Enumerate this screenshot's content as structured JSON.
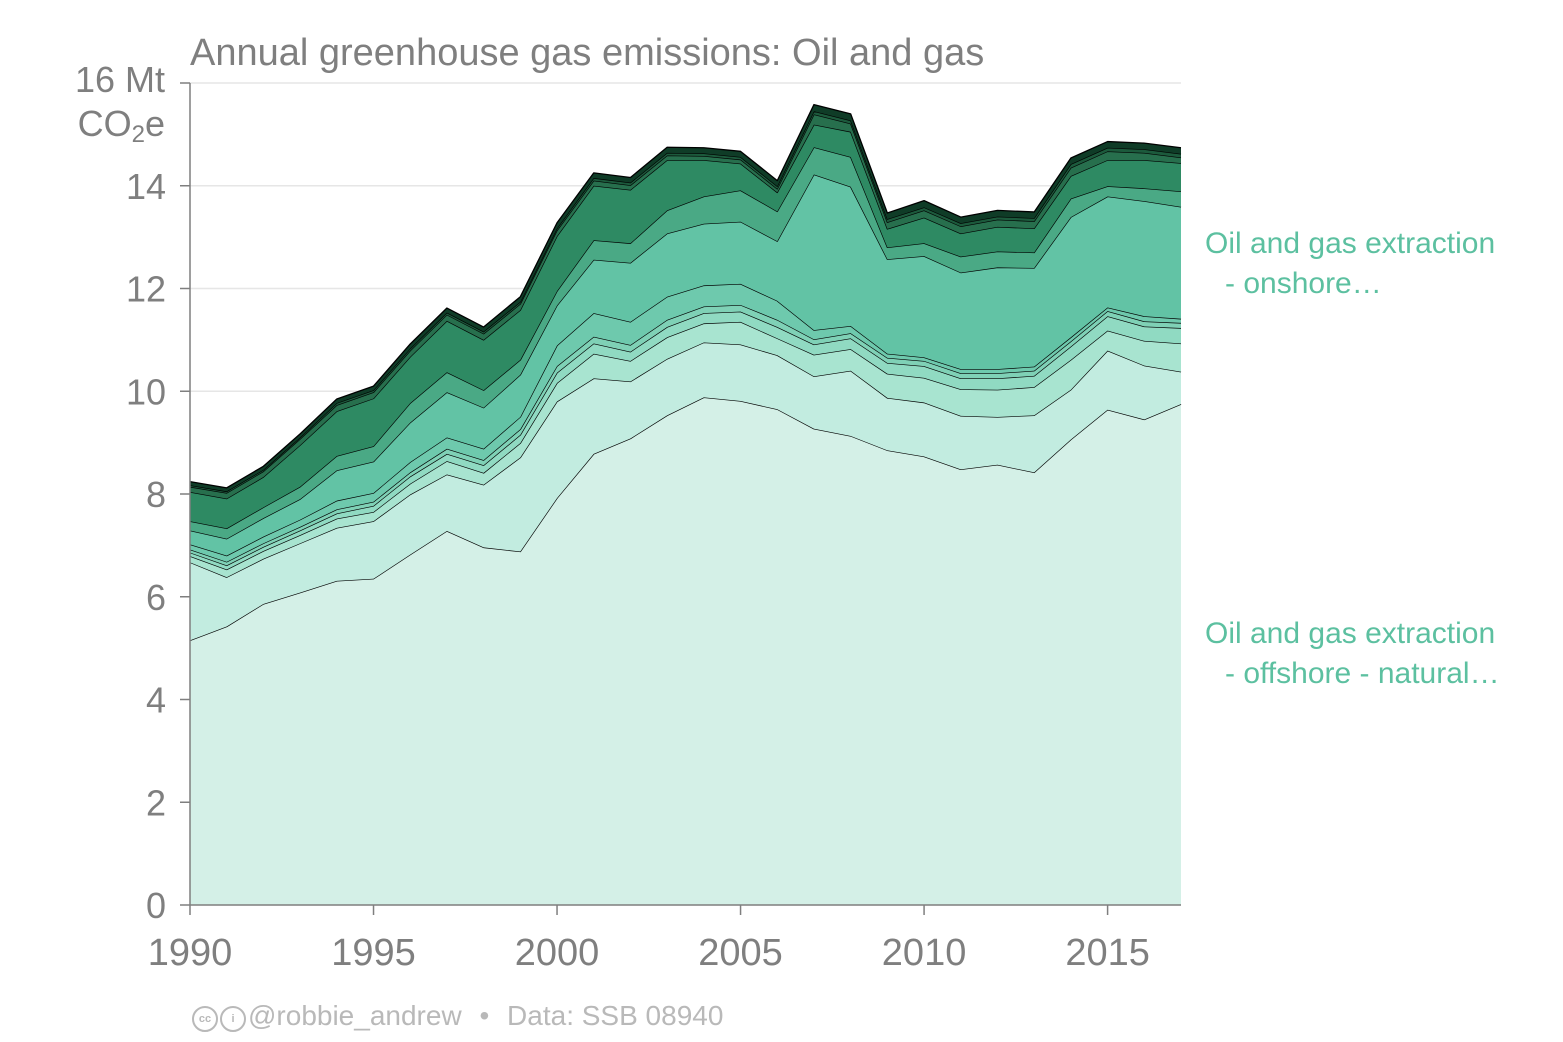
{
  "title": "Annual greenhouse gas emissions: Oil and gas",
  "unit": {
    "line1": "16 Mt",
    "line2_main": "CO",
    "line2_sub": "2",
    "line2_end": "e"
  },
  "footer": {
    "handle": "@robbie_andrew",
    "separator": "•",
    "source": "Data: SSB 08940"
  },
  "series_labels": {
    "onshore": {
      "line1": "Oil and gas extraction",
      "line2": "- onshore…"
    },
    "offshore_gas": {
      "line1": "Oil and gas extraction",
      "line2": "- offshore - natural…"
    }
  },
  "colors": {
    "layers": [
      "#d4f0e7",
      "#c2ece0",
      "#a8e4d0",
      "#90dac2",
      "#7fd1b6",
      "#6ec9ad",
      "#62c3a5",
      "#4aa985",
      "#2e8a63",
      "#276f4d",
      "#1c5a3c",
      "#0f3c27"
    ],
    "grid": "#e6e6e6",
    "axis": "#7f7f7f",
    "label": "#5cc0a0"
  },
  "chart_data": {
    "type": "area",
    "stacked": true,
    "x": [
      1990,
      1991,
      1992,
      1993,
      1994,
      1995,
      1996,
      1997,
      1998,
      1999,
      2000,
      2001,
      2002,
      2003,
      2004,
      2005,
      2006,
      2007,
      2008,
      2009,
      2010,
      2011,
      2012,
      2013,
      2014,
      2015,
      2016,
      2017
    ],
    "xticks": [
      1990,
      1995,
      2000,
      2005,
      2010,
      2015
    ],
    "yticks": [
      0,
      2,
      4,
      6,
      8,
      10,
      12,
      14,
      16
    ],
    "ylim": [
      0,
      16
    ],
    "xlim": [
      1990,
      2017
    ],
    "ylabel": "Mt CO2e",
    "grid": true,
    "series": [
      {
        "name": "Oil and gas extraction - offshore - natural…",
        "values": [
          5.15,
          5.42,
          5.86,
          6.08,
          6.31,
          6.35,
          6.82,
          7.28,
          6.96,
          6.88,
          7.92,
          8.78,
          9.08,
          9.53,
          9.88,
          9.81,
          9.65,
          9.27,
          9.13,
          8.85,
          8.73,
          8.48,
          8.57,
          8.42,
          9.06,
          9.64,
          9.45,
          9.75
        ]
      },
      {
        "values": [
          1.52,
          0.96,
          0.88,
          0.96,
          1.03,
          1.12,
          1.17,
          1.1,
          1.22,
          1.83,
          1.88,
          1.47,
          1.11,
          1.1,
          1.07,
          1.1,
          1.05,
          1.02,
          1.27,
          1.02,
          1.05,
          1.04,
          0.93,
          1.11,
          0.97,
          1.15,
          1.05,
          0.63
        ]
      },
      {
        "values": [
          0.12,
          0.15,
          0.15,
          0.16,
          0.18,
          0.18,
          0.21,
          0.26,
          0.23,
          0.28,
          0.36,
          0.48,
          0.4,
          0.42,
          0.37,
          0.44,
          0.33,
          0.42,
          0.42,
          0.47,
          0.48,
          0.52,
          0.53,
          0.55,
          0.58,
          0.39,
          0.48,
          0.55
        ]
      },
      {
        "values": [
          0.07,
          0.08,
          0.08,
          0.09,
          0.1,
          0.12,
          0.14,
          0.14,
          0.15,
          0.16,
          0.2,
          0.2,
          0.18,
          0.2,
          0.2,
          0.2,
          0.22,
          0.2,
          0.21,
          0.21,
          0.23,
          0.21,
          0.22,
          0.22,
          0.26,
          0.28,
          0.28,
          0.3
        ]
      },
      {
        "values": [
          0.06,
          0.07,
          0.07,
          0.07,
          0.08,
          0.08,
          0.08,
          0.1,
          0.1,
          0.11,
          0.13,
          0.13,
          0.13,
          0.14,
          0.13,
          0.13,
          0.14,
          0.1,
          0.1,
          0.1,
          0.1,
          0.1,
          0.1,
          0.1,
          0.1,
          0.1,
          0.1,
          0.1
        ]
      },
      {
        "values": [
          0.1,
          0.12,
          0.13,
          0.14,
          0.17,
          0.17,
          0.2,
          0.22,
          0.22,
          0.24,
          0.4,
          0.46,
          0.45,
          0.45,
          0.41,
          0.41,
          0.37,
          0.18,
          0.14,
          0.08,
          0.07,
          0.08,
          0.08,
          0.08,
          0.08,
          0.07,
          0.1,
          0.08
        ]
      },
      {
        "name": "Oil and gas extraction - onshore…",
        "values": [
          0.27,
          0.33,
          0.36,
          0.4,
          0.59,
          0.61,
          0.77,
          0.88,
          0.8,
          0.82,
          0.78,
          1.04,
          1.15,
          1.23,
          1.2,
          1.21,
          1.16,
          3.03,
          2.71,
          1.84,
          1.97,
          1.88,
          1.98,
          1.92,
          2.34,
          2.16,
          2.24,
          2.18
        ]
      },
      {
        "values": [
          0.18,
          0.2,
          0.21,
          0.24,
          0.28,
          0.3,
          0.38,
          0.39,
          0.34,
          0.29,
          0.28,
          0.38,
          0.38,
          0.45,
          0.53,
          0.61,
          0.58,
          0.53,
          0.58,
          0.23,
          0.25,
          0.31,
          0.31,
          0.3,
          0.36,
          0.2,
          0.25,
          0.3
        ]
      },
      {
        "values": [
          0.57,
          0.58,
          0.59,
          0.81,
          0.87,
          0.93,
          0.9,
          1.0,
          0.98,
          0.97,
          1.07,
          1.06,
          1.04,
          0.98,
          0.71,
          0.52,
          0.37,
          0.44,
          0.49,
          0.36,
          0.5,
          0.45,
          0.48,
          0.47,
          0.44,
          0.51,
          0.55,
          0.55
        ]
      },
      {
        "values": [
          0.1,
          0.11,
          0.11,
          0.12,
          0.12,
          0.12,
          0.12,
          0.12,
          0.12,
          0.12,
          0.11,
          0.1,
          0.09,
          0.09,
          0.08,
          0.08,
          0.07,
          0.2,
          0.16,
          0.13,
          0.14,
          0.14,
          0.14,
          0.14,
          0.16,
          0.17,
          0.14,
          0.11
        ]
      },
      {
        "values": [
          0.03,
          0.03,
          0.03,
          0.03,
          0.04,
          0.04,
          0.04,
          0.04,
          0.04,
          0.04,
          0.04,
          0.05,
          0.05,
          0.05,
          0.05,
          0.05,
          0.05,
          0.06,
          0.06,
          0.06,
          0.06,
          0.06,
          0.06,
          0.06,
          0.07,
          0.07,
          0.07,
          0.07
        ]
      },
      {
        "values": [
          0.07,
          0.07,
          0.07,
          0.07,
          0.08,
          0.08,
          0.09,
          0.09,
          0.09,
          0.1,
          0.11,
          0.1,
          0.1,
          0.11,
          0.11,
          0.11,
          0.11,
          0.13,
          0.13,
          0.12,
          0.13,
          0.12,
          0.12,
          0.12,
          0.12,
          0.12,
          0.12,
          0.12
        ]
      }
    ]
  }
}
